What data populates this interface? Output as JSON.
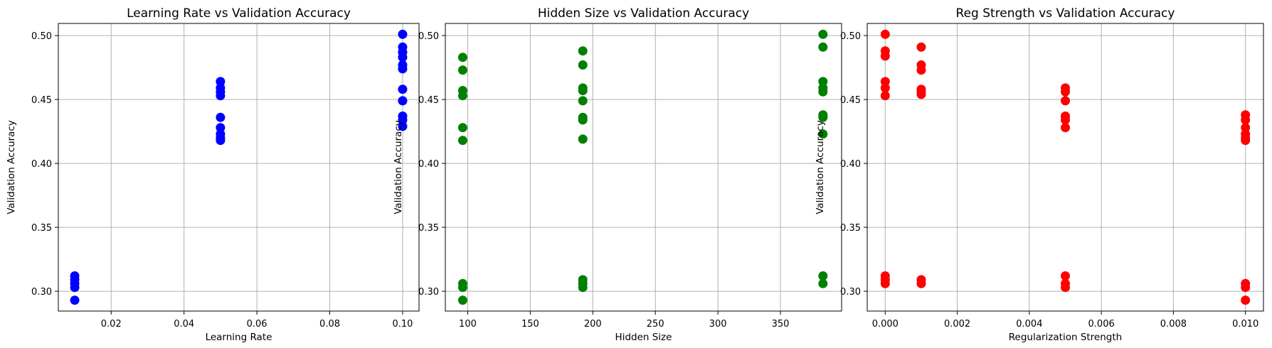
{
  "chart_data": [
    {
      "type": "scatter",
      "title": "Learning Rate vs Validation Accuracy",
      "xlabel": "Learning Rate",
      "ylabel": "Validation Accuracy",
      "xlim": [
        0.0055,
        0.1045
      ],
      "ylim": [
        0.2845,
        0.5095
      ],
      "xticks": [
        0.02,
        0.04,
        0.06,
        0.08,
        0.1
      ],
      "xtick_labels": [
        "0.02",
        "0.04",
        "0.06",
        "0.08",
        "0.10"
      ],
      "yticks": [
        0.3,
        0.35,
        0.4,
        0.45,
        0.5
      ],
      "ytick_labels": [
        "0.30",
        "0.35",
        "0.40",
        "0.45",
        "0.50"
      ],
      "grid": true,
      "color": "#0000ff",
      "series": [
        {
          "x": [
            0.01,
            0.01,
            0.01,
            0.01,
            0.01,
            0.05,
            0.05,
            0.05,
            0.05,
            0.05,
            0.05,
            0.05,
            0.05,
            0.05,
            0.1,
            0.1,
            0.1,
            0.1,
            0.1,
            0.1,
            0.1,
            0.1,
            0.1,
            0.1,
            0.1
          ],
          "y": [
            0.312,
            0.309,
            0.306,
            0.303,
            0.293,
            0.464,
            0.459,
            0.456,
            0.453,
            0.436,
            0.428,
            0.423,
            0.42,
            0.418,
            0.501,
            0.491,
            0.487,
            0.483,
            0.477,
            0.474,
            0.458,
            0.449,
            0.437,
            0.434,
            0.429
          ]
        }
      ]
    },
    {
      "type": "scatter",
      "title": "Hidden Size vs Validation Accuracy",
      "xlabel": "Hidden Size",
      "ylabel": "Validation Accuracy",
      "xlim": [
        82.1,
        398.9
      ],
      "ylim": [
        0.2845,
        0.5095
      ],
      "xticks": [
        100,
        150,
        200,
        250,
        300,
        350
      ],
      "xtick_labels": [
        "100",
        "150",
        "200",
        "250",
        "300",
        "350"
      ],
      "yticks": [
        0.3,
        0.35,
        0.4,
        0.45,
        0.5
      ],
      "ytick_labels": [
        "0.30",
        "0.35",
        "0.40",
        "0.45",
        "0.50"
      ],
      "grid": true,
      "color": "#008000",
      "series": [
        {
          "x": [
            96,
            96,
            96,
            96,
            96,
            96,
            96,
            96,
            96,
            192,
            192,
            192,
            192,
            192,
            192,
            192,
            192,
            192,
            192,
            384,
            384,
            384,
            384,
            384,
            384,
            384,
            384,
            384
          ],
          "y": [
            0.483,
            0.473,
            0.457,
            0.453,
            0.428,
            0.418,
            0.306,
            0.303,
            0.293,
            0.488,
            0.477,
            0.459,
            0.457,
            0.449,
            0.436,
            0.434,
            0.419,
            0.309,
            0.306,
            0.501,
            0.491,
            0.464,
            0.459,
            0.456,
            0.438,
            0.436,
            0.423,
            0.312
          ]
        },
        {
          "x": [
            192,
            384
          ],
          "y": [
            0.303,
            0.306
          ]
        }
      ]
    },
    {
      "type": "scatter",
      "title": "Reg Strength vs Validation Accuracy",
      "xlabel": "Regularization Strength",
      "ylabel": "Validation Accuracy",
      "xlim": [
        -0.0005,
        0.0105
      ],
      "ylim": [
        0.2845,
        0.5095
      ],
      "xticks": [
        0.0,
        0.002,
        0.004,
        0.006,
        0.008,
        0.01
      ],
      "xtick_labels": [
        "0.000",
        "0.002",
        "0.004",
        "0.006",
        "0.008",
        "0.010"
      ],
      "yticks": [
        0.3,
        0.35,
        0.4,
        0.45,
        0.5
      ],
      "ytick_labels": [
        "0.30",
        "0.35",
        "0.40",
        "0.45",
        "0.50"
      ],
      "grid": true,
      "color": "#ff0000",
      "series": [
        {
          "x": [
            0.0,
            0.0,
            0.0,
            0.0,
            0.0,
            0.0,
            0.0,
            0.0,
            0.0,
            0.001,
            0.001,
            0.001,
            0.001,
            0.001,
            0.001,
            0.001,
            0.001,
            0.005,
            0.005,
            0.005,
            0.005,
            0.005,
            0.005,
            0.005,
            0.005,
            0.005,
            0.01,
            0.01,
            0.01,
            0.01,
            0.01,
            0.01,
            0.01,
            0.01,
            0.01
          ],
          "y": [
            0.501,
            0.488,
            0.484,
            0.464,
            0.459,
            0.453,
            0.312,
            0.309,
            0.306,
            0.491,
            0.477,
            0.473,
            0.458,
            0.456,
            0.454,
            0.309,
            0.306,
            0.459,
            0.456,
            0.449,
            0.437,
            0.434,
            0.428,
            0.312,
            0.306,
            0.303,
            0.438,
            0.434,
            0.428,
            0.423,
            0.42,
            0.418,
            0.306,
            0.303,
            0.293
          ]
        }
      ]
    }
  ]
}
